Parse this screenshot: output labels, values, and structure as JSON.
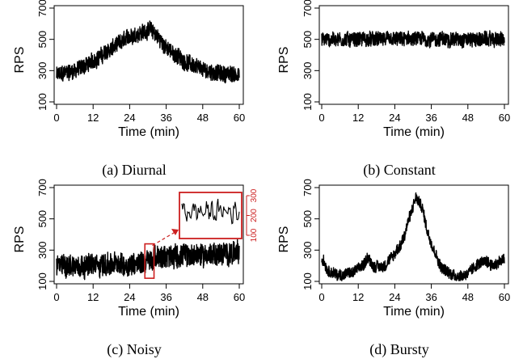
{
  "colors": {
    "series": "#000000",
    "inset": "#cc1f1f",
    "background": "#ffffff"
  },
  "chart_data": [
    {
      "type": "line",
      "caption": "(a) Diurnal",
      "xlabel": "Time (min)",
      "ylabel": "RPS",
      "xlim": [
        0,
        60
      ],
      "ylim": [
        100,
        700
      ],
      "xticks": [
        "0",
        "12",
        "24",
        "36",
        "48",
        "60"
      ],
      "yticks": [
        "100",
        "300",
        "500",
        "700"
      ],
      "pattern": "diurnal",
      "noise_band": 50,
      "series": [
        {
          "x": [
            0,
            6,
            12,
            18,
            24,
            28,
            31,
            33,
            36,
            42,
            48,
            54,
            60
          ],
          "y": [
            270,
            300,
            360,
            440,
            520,
            545,
            565,
            520,
            445,
            360,
            305,
            280,
            275
          ]
        }
      ]
    },
    {
      "type": "line",
      "caption": "(b) Constant",
      "xlabel": "Time (min)",
      "ylabel": "RPS",
      "xlim": [
        0,
        60
      ],
      "ylim": [
        100,
        700
      ],
      "xticks": [
        "0",
        "12",
        "24",
        "36",
        "48",
        "60"
      ],
      "yticks": [
        "100",
        "300",
        "500",
        "700"
      ],
      "pattern": "constant",
      "noise_band": 45,
      "series": [
        {
          "x": [
            0,
            60
          ],
          "y": [
            500,
            500
          ]
        }
      ]
    },
    {
      "type": "line",
      "caption": "(c) Noisy",
      "xlabel": "Time (min)",
      "ylabel": "RPS",
      "xlim": [
        0,
        60
      ],
      "ylim": [
        100,
        700
      ],
      "xticks": [
        "0",
        "12",
        "24",
        "36",
        "48",
        "60"
      ],
      "yticks": [
        "100",
        "300",
        "500",
        "700"
      ],
      "pattern": "noisy",
      "noise_band": 70,
      "series": [
        {
          "x": [
            0,
            12,
            24,
            30,
            33,
            42,
            54,
            60
          ],
          "y": [
            200,
            205,
            210,
            230,
            255,
            265,
            275,
            285
          ]
        }
      ],
      "inset": {
        "highlight_x": [
          29,
          32
        ],
        "highlight_y": [
          120,
          340
        ],
        "yticks": [
          "100",
          "200",
          "300"
        ],
        "ylim": [
          100,
          300
        ]
      }
    },
    {
      "type": "line",
      "caption": "(d) Bursty",
      "xlabel": "Time (min)",
      "ylabel": "RPS",
      "xlim": [
        0,
        60
      ],
      "ylim": [
        100,
        700
      ],
      "xticks": [
        "0",
        "12",
        "24",
        "36",
        "48",
        "60"
      ],
      "yticks": [
        "100",
        "300",
        "500",
        "700"
      ],
      "pattern": "bursty",
      "noise_band": 35,
      "series": [
        {
          "x": [
            0,
            2,
            5,
            10,
            14,
            15,
            17,
            21,
            26,
            29,
            31,
            33,
            35,
            39,
            42,
            45,
            48,
            51,
            54,
            56,
            60
          ],
          "y": [
            250,
            170,
            140,
            150,
            210,
            260,
            195,
            200,
            330,
            520,
            635,
            570,
            400,
            200,
            150,
            135,
            150,
            210,
            230,
            205,
            240
          ]
        }
      ]
    }
  ]
}
